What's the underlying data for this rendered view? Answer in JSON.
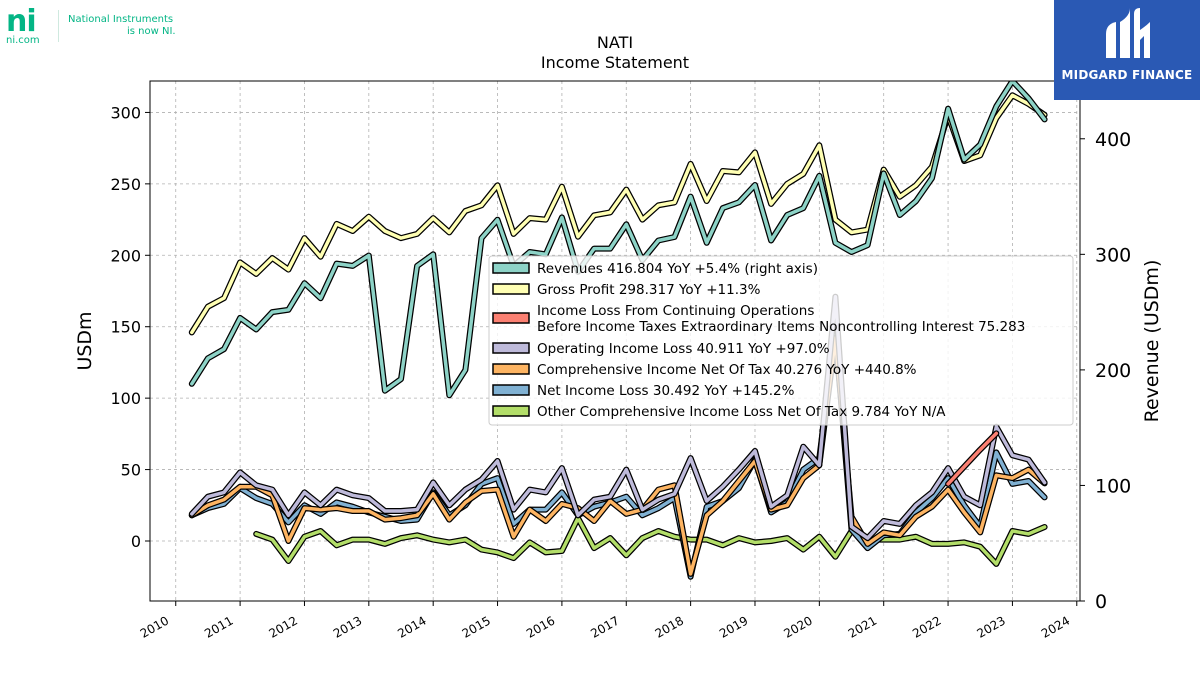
{
  "logos": {
    "ni_mark": "ni",
    "ni_domain": "ni.com",
    "ni_note_line1": "National Instruments",
    "ni_note_line2": "is now NI.",
    "midgard": "MIDGARD FINANCE"
  },
  "chart_data": {
    "type": "line",
    "title": "NATI",
    "subtitle": "Income Statement",
    "ylabel": "USDm",
    "y2label": "Revenue (USDm)",
    "xlim": [
      2009.6,
      2024.05
    ],
    "ylim": [
      -42,
      322
    ],
    "y2lim": [
      0,
      450
    ],
    "x_ticks": [
      2010,
      2011,
      2012,
      2013,
      2014,
      2015,
      2016,
      2017,
      2018,
      2019,
      2020,
      2021,
      2022,
      2023,
      2024
    ],
    "y_ticks": [
      0,
      50,
      100,
      150,
      200,
      250,
      300
    ],
    "y2_ticks": [
      0,
      100,
      200,
      300,
      400
    ],
    "grid": true,
    "legend_position": "center-right",
    "series": [
      {
        "name": "Revenues",
        "legend": "Revenues  416.804 YoY +5.4% (right axis)",
        "color": "#8dd3c7",
        "axis": "right",
        "x": [
          2010.25,
          2010.5,
          2010.75,
          2011.0,
          2011.25,
          2011.5,
          2011.75,
          2012.0,
          2012.25,
          2012.5,
          2012.75,
          2013.0,
          2013.25,
          2013.5,
          2013.75,
          2014.0,
          2014.25,
          2014.5,
          2014.75,
          2015.0,
          2015.25,
          2015.5,
          2015.75,
          2016.0,
          2016.25,
          2016.5,
          2016.75,
          2017.0,
          2017.25,
          2017.5,
          2017.75,
          2018.0,
          2018.25,
          2018.5,
          2018.75,
          2019.0,
          2019.25,
          2019.5,
          2019.75,
          2020.0,
          2020.25,
          2020.5,
          2020.75,
          2021.0,
          2021.25,
          2021.5,
          2021.75,
          2022.0,
          2022.25,
          2022.5,
          2022.75,
          2023.0,
          2023.25,
          2023.5
        ],
        "values": [
          188,
          210,
          218,
          245,
          235,
          250,
          252,
          275,
          262,
          292,
          290,
          299,
          182,
          192,
          290,
          300,
          178,
          200,
          314,
          330,
          290,
          302,
          300,
          332,
          285,
          305,
          305,
          326,
          295,
          312,
          315,
          350,
          310,
          340,
          345,
          360,
          312,
          334,
          340,
          368,
          310,
          302,
          308,
          370,
          334,
          346,
          366,
          426,
          382,
          395,
          428,
          450,
          435,
          416.8
        ]
      },
      {
        "name": "Gross Profit",
        "legend": "Gross Profit  298.317 YoY +11.3%",
        "color": "#ffffb3",
        "axis": "left",
        "x": [
          2010.25,
          2010.5,
          2010.75,
          2011.0,
          2011.25,
          2011.5,
          2011.75,
          2012.0,
          2012.25,
          2012.5,
          2012.75,
          2013.0,
          2013.25,
          2013.5,
          2013.75,
          2014.0,
          2014.25,
          2014.5,
          2014.75,
          2015.0,
          2015.25,
          2015.5,
          2015.75,
          2016.0,
          2016.25,
          2016.5,
          2016.75,
          2017.0,
          2017.25,
          2017.5,
          2017.75,
          2018.0,
          2018.25,
          2018.5,
          2018.75,
          2019.0,
          2019.25,
          2019.5,
          2019.75,
          2020.0,
          2020.25,
          2020.5,
          2020.75,
          2021.0,
          2021.25,
          2021.5,
          2021.75,
          2022.0,
          2022.25,
          2022.5,
          2022.75,
          2023.0,
          2023.25,
          2023.5
        ],
        "values": [
          146,
          164,
          170,
          195,
          187,
          198,
          190,
          212,
          199,
          222,
          217,
          227,
          217,
          212,
          215,
          226,
          216,
          231,
          235,
          249,
          215,
          226,
          225,
          248,
          213,
          228,
          230,
          246,
          225,
          235,
          237,
          264,
          238,
          259,
          258,
          272,
          236,
          250,
          257,
          277,
          225,
          216,
          218,
          260,
          241,
          249,
          262,
          298,
          266,
          270,
          296,
          312,
          306,
          298.3
        ]
      },
      {
        "name": "Income Loss From Continuing Operations Before Income Taxes Extraordinary Items Noncontrolling Interest",
        "legend": "Income Loss From Continuing Operations",
        "legend_line2": "Before Income Taxes Extraordinary Items Noncontrolling Interest  75.283",
        "color": "#fb8072",
        "axis": "left",
        "x": [
          2022.0,
          2022.25,
          2022.5,
          2022.75
        ],
        "values": [
          40,
          52,
          64,
          75.3
        ]
      },
      {
        "name": "Operating Income Loss",
        "legend": "Operating Income Loss  40.911 YoY +97.0%",
        "color": "#bebada",
        "axis": "left",
        "x": [
          2010.25,
          2010.5,
          2010.75,
          2011.0,
          2011.25,
          2011.5,
          2011.75,
          2012.0,
          2012.25,
          2012.5,
          2012.75,
          2013.0,
          2013.25,
          2013.5,
          2013.75,
          2014.0,
          2014.25,
          2014.5,
          2014.75,
          2015.0,
          2015.25,
          2015.5,
          2015.75,
          2016.0,
          2016.25,
          2016.5,
          2016.75,
          2017.0,
          2017.25,
          2017.5,
          2017.75,
          2018.0,
          2018.25,
          2018.5,
          2018.75,
          2019.0,
          2019.25,
          2019.5,
          2019.75,
          2020.0,
          2020.25,
          2020.5,
          2020.75,
          2021.0,
          2021.25,
          2021.5,
          2021.75,
          2022.0,
          2022.25,
          2022.5,
          2022.75,
          2023.0,
          2023.25,
          2023.5
        ],
        "values": [
          19,
          31,
          34,
          48,
          39,
          36,
          18,
          34,
          25,
          36,
          32,
          30,
          21,
          21,
          22,
          41,
          25,
          36,
          43,
          56,
          22,
          36,
          34,
          51,
          18,
          29,
          31,
          50,
          22,
          29,
          33,
          58,
          28,
          38,
          50,
          63,
          24,
          32,
          66,
          53,
          171,
          10,
          2,
          14,
          12,
          25,
          34,
          51,
          31,
          25,
          80,
          60,
          57,
          40.9
        ]
      },
      {
        "name": "Comprehensive Income Net Of Tax",
        "legend": "Comprehensive Income Net Of Tax  40.276 YoY +440.8%",
        "color": "#fdb462",
        "axis": "left",
        "x": [
          2010.25,
          2010.5,
          2010.75,
          2011.0,
          2011.25,
          2011.5,
          2011.75,
          2012.0,
          2012.25,
          2012.5,
          2012.75,
          2013.0,
          2013.25,
          2013.5,
          2013.75,
          2014.0,
          2014.25,
          2014.5,
          2014.75,
          2015.0,
          2015.25,
          2015.5,
          2015.75,
          2016.0,
          2016.25,
          2016.5,
          2016.75,
          2017.0,
          2017.25,
          2017.5,
          2017.75,
          2018.0,
          2018.25,
          2018.5,
          2018.75,
          2019.0,
          2019.25,
          2019.5,
          2019.75,
          2020.0,
          2020.25,
          2020.5,
          2020.75,
          2021.0,
          2021.25,
          2021.5,
          2021.75,
          2022.0,
          2022.25,
          2022.5,
          2022.75,
          2023.0,
          2023.25,
          2023.5
        ],
        "values": [
          18,
          25,
          29,
          38,
          38,
          32,
          0,
          23,
          22,
          23,
          21,
          21,
          15,
          16,
          18,
          33,
          15,
          27,
          35,
          36,
          3,
          22,
          14,
          26,
          23,
          14,
          28,
          19,
          22,
          36,
          39,
          -23,
          18,
          28,
          42,
          56,
          22,
          25,
          44,
          53,
          142,
          17,
          -2,
          6,
          4,
          17,
          24,
          36,
          20,
          6,
          46,
          44,
          50,
          40.3
        ]
      },
      {
        "name": "Net Income Loss",
        "legend": "Net Income Loss  30.492 YoY +145.2%",
        "color": "#80b1d3",
        "axis": "left",
        "x": [
          2010.25,
          2010.5,
          2010.75,
          2011.0,
          2011.25,
          2011.5,
          2011.75,
          2012.0,
          2012.25,
          2012.5,
          2012.75,
          2013.0,
          2013.25,
          2013.5,
          2013.75,
          2014.0,
          2014.25,
          2014.5,
          2014.75,
          2015.0,
          2015.25,
          2015.5,
          2015.75,
          2016.0,
          2016.25,
          2016.5,
          2016.75,
          2017.0,
          2017.25,
          2017.5,
          2017.75,
          2018.0,
          2018.25,
          2018.5,
          2018.75,
          2019.0,
          2019.25,
          2019.5,
          2019.75,
          2020.0,
          2020.25,
          2020.5,
          2020.75,
          2021.0,
          2021.25,
          2021.5,
          2021.75,
          2022.0,
          2022.25,
          2022.5,
          2022.75,
          2023.0,
          2023.25,
          2023.5
        ],
        "values": [
          18,
          23,
          26,
          37,
          30,
          26,
          13,
          25,
          19,
          27,
          24,
          20,
          17,
          14,
          15,
          34,
          18,
          25,
          40,
          44,
          12,
          22,
          22,
          34,
          18,
          24,
          27,
          31,
          18,
          23,
          30,
          -25,
          24,
          28,
          37,
          57,
          20,
          27,
          50,
          58,
          147,
          8,
          -5,
          4,
          5,
          20,
          30,
          44,
          25,
          10,
          62,
          40,
          42,
          30.5
        ]
      },
      {
        "name": "Other Comprehensive Income Loss Net Of Tax",
        "legend": "Other Comprehensive Income Loss Net Of Tax  9.784 YoY N/A",
        "color": "#b3de69",
        "axis": "left",
        "x": [
          2011.25,
          2011.5,
          2011.75,
          2012.0,
          2012.25,
          2012.5,
          2012.75,
          2013.0,
          2013.25,
          2013.5,
          2013.75,
          2014.0,
          2014.25,
          2014.5,
          2014.75,
          2015.0,
          2015.25,
          2015.5,
          2015.75,
          2016.0,
          2016.25,
          2016.5,
          2016.75,
          2017.0,
          2017.25,
          2017.5,
          2017.75,
          2018.0,
          2018.25,
          2018.5,
          2018.75,
          2019.0,
          2019.25,
          2019.5,
          2019.75,
          2020.0,
          2020.25,
          2020.5,
          2020.75,
          2021.0,
          2021.25,
          2021.5,
          2021.75,
          2022.0,
          2022.25,
          2022.5,
          2022.75,
          2023.0,
          2023.25,
          2023.5
        ],
        "values": [
          5,
          1,
          -14,
          3,
          7,
          -3,
          1,
          1,
          -2,
          2,
          4,
          1,
          -1,
          1,
          -6,
          -8,
          -12,
          -1,
          -8,
          -7,
          16,
          -5,
          2,
          -10,
          2,
          7,
          3,
          1,
          1,
          -3,
          2,
          -1,
          0,
          2,
          -6,
          3,
          -11,
          7,
          1,
          1,
          1,
          3,
          -2,
          -2,
          -1,
          -4,
          -16,
          7,
          5,
          9.8
        ]
      }
    ]
  }
}
